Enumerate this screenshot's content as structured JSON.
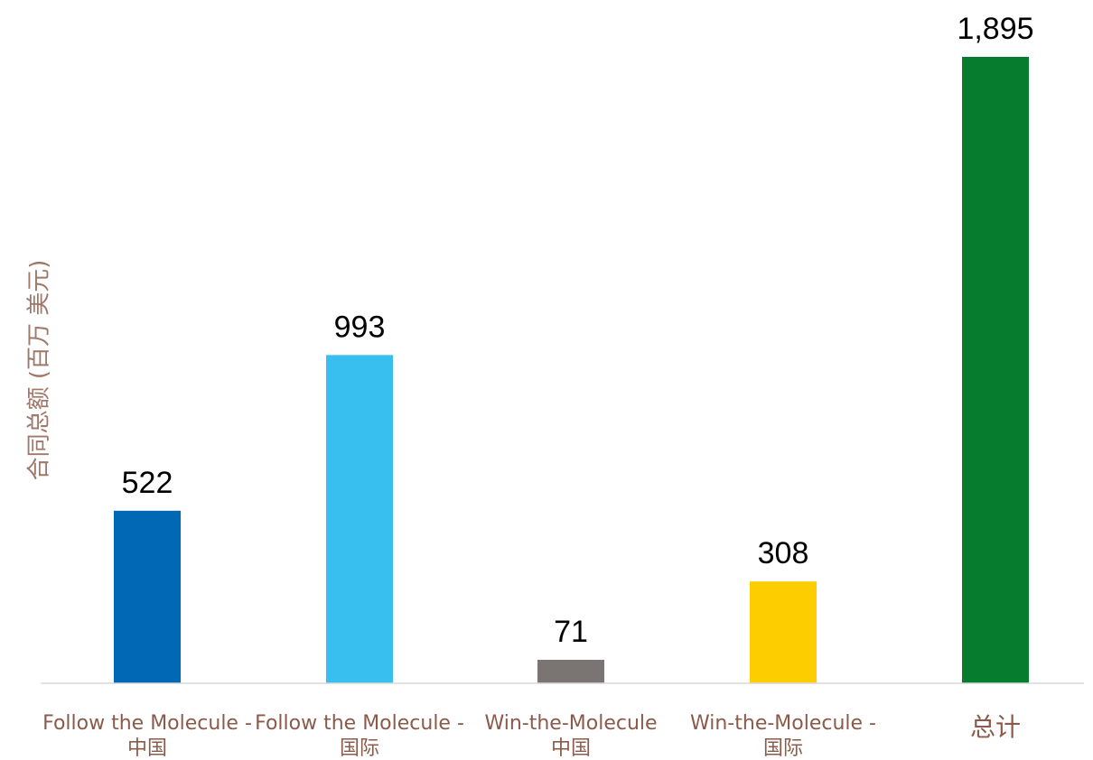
{
  "chart_data": {
    "type": "bar",
    "ylabel": "合同总额 (百万 美元)",
    "categories": [
      [
        "Follow the Molecule -",
        "中国"
      ],
      [
        "Follow the Molecule -",
        "国际"
      ],
      [
        "Win-the-Molecule",
        "中国"
      ],
      [
        "Win-the-Molecule -",
        "国际"
      ],
      [
        "总计"
      ]
    ],
    "values": [
      522,
      993,
      71,
      308,
      1895
    ],
    "value_labels": [
      "522",
      "993",
      "71",
      "308",
      "1,895"
    ],
    "colors": [
      "#0068B5",
      "#38BFEF",
      "#7A7573",
      "#FDCD00",
      "#067C2F"
    ],
    "ylim": [
      0,
      1895
    ],
    "grid": false,
    "legend": "none",
    "label_color": "#8B5A4A",
    "axis_color": "#D9D9D9"
  }
}
